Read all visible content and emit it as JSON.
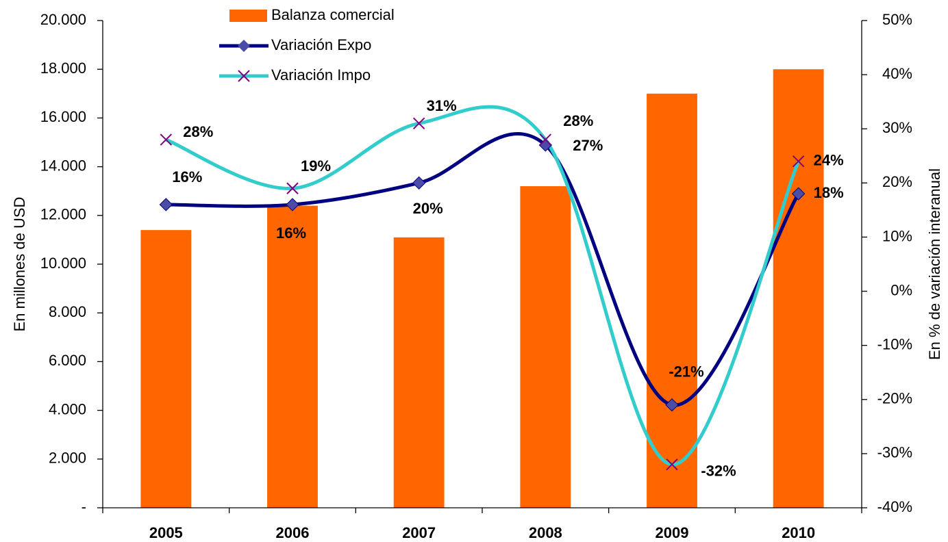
{
  "chart_data": {
    "type": "bar_line",
    "categories": [
      "2005",
      "2006",
      "2007",
      "2008",
      "2009",
      "2010"
    ],
    "series": [
      {
        "name": "Balanza comercial",
        "type": "bar",
        "color": "#ff6600",
        "values": [
          11400,
          12400,
          11100,
          13200,
          17000,
          18000
        ]
      },
      {
        "name": "Variación Expo",
        "type": "line",
        "axis": "y2",
        "color": "#000080",
        "marker": "diamond",
        "marker_color": "#4b4ba8",
        "values": [
          16,
          16,
          20,
          27,
          -21,
          18
        ],
        "value_labels": [
          "16%",
          "16%",
          "20%",
          "27%",
          "-21%",
          "18%"
        ]
      },
      {
        "name": "Variación Impo",
        "type": "line",
        "axis": "y2",
        "color": "#33cccc",
        "marker": "x",
        "marker_color": "#800080",
        "values": [
          28,
          19,
          31,
          28,
          -32,
          24
        ],
        "value_labels": [
          "28%",
          "19%",
          "31%",
          "28%",
          "-32%",
          "24%"
        ]
      }
    ],
    "ylabel": "En millones de USD",
    "y2label": "En % de variación interanual",
    "ylim": [
      0,
      20000
    ],
    "yticks": [
      {
        "value": 0,
        "label": "-"
      },
      {
        "value": 2000,
        "label": "2.000"
      },
      {
        "value": 4000,
        "label": "4.000"
      },
      {
        "value": 6000,
        "label": "6.000"
      },
      {
        "value": 8000,
        "label": "8.000"
      },
      {
        "value": 10000,
        "label": "10.000"
      },
      {
        "value": 12000,
        "label": "12.000"
      },
      {
        "value": 14000,
        "label": "14.000"
      },
      {
        "value": 16000,
        "label": "16.000"
      },
      {
        "value": 18000,
        "label": "18.000"
      },
      {
        "value": 20000,
        "label": "20.000"
      }
    ],
    "y2lim": [
      -40,
      50
    ],
    "y2ticks": [
      {
        "value": -40,
        "label": "-40%"
      },
      {
        "value": -30,
        "label": "-30%"
      },
      {
        "value": -20,
        "label": "-20%"
      },
      {
        "value": -10,
        "label": "-10%"
      },
      {
        "value": 0,
        "label": "0%"
      },
      {
        "value": 10,
        "label": "10%"
      },
      {
        "value": 20,
        "label": "20%"
      },
      {
        "value": 30,
        "label": "30%"
      },
      {
        "value": 40,
        "label": "40%"
      },
      {
        "value": 50,
        "label": "50%"
      }
    ],
    "legend": "top",
    "grid": false
  }
}
